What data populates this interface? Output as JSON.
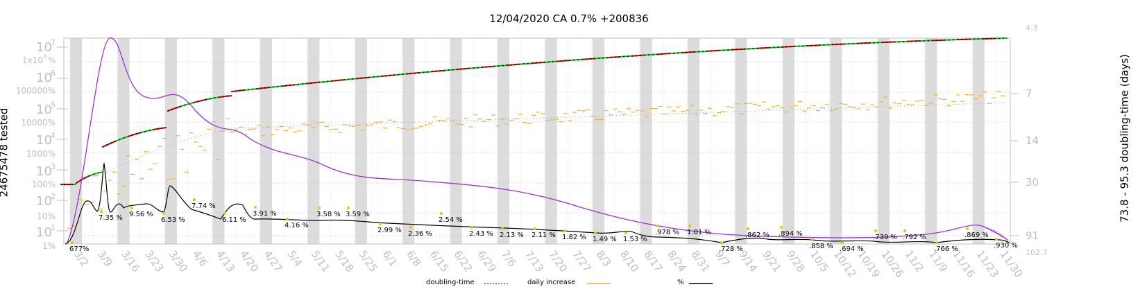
{
  "chart_data": {
    "type": "line",
    "title": "12/04/2020 CA 0.7% +200836",
    "ylabel_left": "24675478 tested",
    "ylabel_right": "73.8 - 95.3 doubling-time (days)",
    "y_left_ticks": [
      "10^1",
      "10^2",
      "10^3",
      "10^4",
      "10^5",
      "10^6",
      "10^7"
    ],
    "y_left_extra_ticks": [
      "1x10^6%"
    ],
    "y_pct_ticks": [
      "1%",
      "10%",
      "100%",
      "1000%",
      "10000%",
      "100000%"
    ],
    "y_right_ticks": [
      "4.3",
      "7",
      "14",
      "30",
      "91",
      "102.7"
    ],
    "x_ticks": [
      "3/9",
      "3/16",
      "3/23",
      "3/30",
      "4/6",
      "4/13",
      "4/20",
      "4/27",
      "5/4",
      "5/11",
      "5/18",
      "5/25",
      "6/1",
      "6/8",
      "6/15",
      "6/22",
      "6/29",
      "7/6",
      "7/13",
      "7/20",
      "7/27",
      "8/3",
      "8/10",
      "8/17",
      "8/24",
      "8/31",
      "9/7",
      "9/14",
      "9/21",
      "9/28",
      "10/5",
      "10/12",
      "10/19",
      "10/26",
      "11/2",
      "11/9",
      "11/16",
      "11/23",
      "11/30"
    ],
    "x_first_tick": "3/2",
    "pct_annotations": [
      {
        "date": "3/4",
        "label": "677"
      },
      {
        "date": "3/14",
        "label": "7.35"
      },
      {
        "date": "3/20",
        "label": "9.56"
      },
      {
        "date": "3/27",
        "label": "6.53"
      },
      {
        "date": "4/3",
        "label": "7.74"
      },
      {
        "date": "4/10",
        "label": "6.11"
      },
      {
        "date": "4/17",
        "label": "3.91"
      },
      {
        "date": "4/24",
        "label": "4.16"
      },
      {
        "date": "5/1",
        "label": "3.58"
      },
      {
        "date": "5/8",
        "label": "3.59"
      },
      {
        "date": "5/15",
        "label": "2.99"
      },
      {
        "date": "5/22",
        "label": "2.36"
      },
      {
        "date": "5/29",
        "label": "2.54"
      },
      {
        "date": "6/5",
        "label": "2.43"
      },
      {
        "date": "6/12",
        "label": "2.13"
      },
      {
        "date": "6/19",
        "label": "2.11"
      },
      {
        "date": "6/26",
        "label": "1.82"
      },
      {
        "date": "7/3",
        "label": "1.49"
      },
      {
        "date": "7/10",
        "label": "1.53"
      },
      {
        "date": "7/17",
        "label": ".978"
      },
      {
        "date": "7/24",
        "label": "1.01"
      },
      {
        "date": "7/31",
        "label": ".728"
      },
      {
        "date": "8/7",
        "label": ".862"
      },
      {
        "date": "8/14",
        "label": ".894"
      },
      {
        "date": "8/21",
        "label": ".858"
      },
      {
        "date": "8/28",
        "label": ".694"
      },
      {
        "date": "9/4",
        "label": ".739"
      },
      {
        "date": "9/11",
        "label": ".792"
      },
      {
        "date": "9/18",
        "label": ".766"
      },
      {
        "date": "9/25",
        "label": ".869"
      },
      {
        "date": "10/2",
        "label": ".930"
      }
    ],
    "pct_unit": "%",
    "series": [
      {
        "name": "doubling-time",
        "color": "#9c31d6"
      },
      {
        "name": "daily increase",
        "color": "#f0b030"
      },
      {
        "name": "%",
        "color": "#000000"
      }
    ],
    "tested_segments_color_up": "#cc0000",
    "tested_segments_color_down": "#00cc00"
  },
  "legend": {
    "doubling": "doubling-time",
    "daily": "daily increase",
    "pct": "%"
  }
}
